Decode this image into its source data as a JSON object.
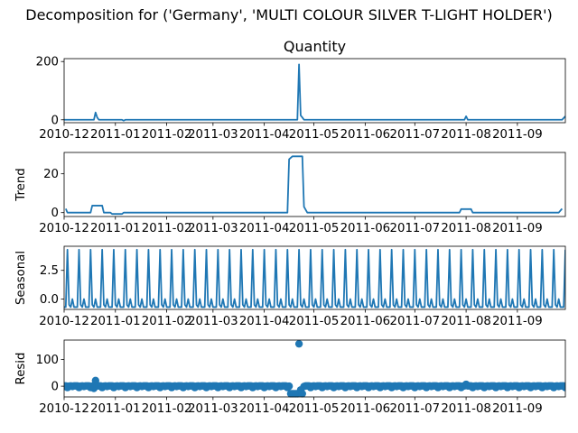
{
  "figure": {
    "suptitle": "Decomposition for ('Germany', 'MULTI COLOUR SILVER T-LIGHT HOLDER')"
  },
  "colors": {
    "series": "#1f77b4"
  },
  "chart_data": [
    {
      "type": "line",
      "title": "Quantity",
      "ylabel": "",
      "xlabel": "",
      "xlim": [
        "2010-12-01",
        "2011-09-30"
      ],
      "ylim": [
        -10,
        210
      ],
      "yticks": [
        0,
        200
      ],
      "xticklabels": [
        "2010-12",
        "2011-01",
        "2011-02",
        "2011-03",
        "2011-04",
        "2011-05",
        "2011-06",
        "2011-07",
        "2011-08",
        "2011-09"
      ],
      "points": [
        [
          "2010-12-01",
          0
        ],
        [
          "2010-12-19",
          0
        ],
        [
          "2010-12-20",
          25
        ],
        [
          "2010-12-21",
          8
        ],
        [
          "2010-12-22",
          0
        ],
        [
          "2011-01-05",
          0
        ],
        [
          "2011-01-06",
          -3
        ],
        [
          "2011-01-07",
          0
        ],
        [
          "2011-04-21",
          0
        ],
        [
          "2011-04-22",
          190
        ],
        [
          "2011-04-23",
          15
        ],
        [
          "2011-04-24",
          8
        ],
        [
          "2011-04-25",
          0
        ],
        [
          "2011-07-31",
          0
        ],
        [
          "2011-08-01",
          12
        ],
        [
          "2011-08-02",
          0
        ],
        [
          "2011-09-28",
          0
        ],
        [
          "2011-09-30",
          12
        ]
      ],
      "grid": false,
      "legend": "none"
    },
    {
      "type": "line",
      "title": "",
      "ylabel": "Trend",
      "xlabel": "",
      "xlim": [
        "2010-12-01",
        "2011-09-30"
      ],
      "ylim": [
        -2,
        31
      ],
      "yticks": [
        0,
        20
      ],
      "xticklabels": [
        "2010-12",
        "2011-01",
        "2011-02",
        "2011-03",
        "2011-04",
        "2011-05",
        "2011-06",
        "2011-07",
        "2011-08",
        "2011-09"
      ],
      "points": [
        [
          "2010-12-02",
          2
        ],
        [
          "2010-12-03",
          0
        ],
        [
          "2010-12-17",
          0
        ],
        [
          "2010-12-18",
          3.6
        ],
        [
          "2010-12-24",
          3.6
        ],
        [
          "2010-12-25",
          0
        ],
        [
          "2010-12-29",
          0
        ],
        [
          "2010-12-30",
          -0.7
        ],
        [
          "2011-01-05",
          -0.7
        ],
        [
          "2011-01-06",
          0
        ],
        [
          "2011-04-15",
          0
        ],
        [
          "2011-04-16",
          27.5
        ],
        [
          "2011-04-18",
          29
        ],
        [
          "2011-04-24",
          29
        ],
        [
          "2011-04-25",
          3
        ],
        [
          "2011-04-27",
          0
        ],
        [
          "2011-07-28",
          0
        ],
        [
          "2011-07-29",
          1.8
        ],
        [
          "2011-08-04",
          1.8
        ],
        [
          "2011-08-05",
          0
        ],
        [
          "2011-09-26",
          0
        ],
        [
          "2011-09-28",
          2
        ]
      ],
      "grid": false,
      "legend": "none"
    },
    {
      "type": "line",
      "title": "",
      "ylabel": "Seasonal",
      "xlabel": "",
      "xlim": [
        "2010-12-01",
        "2011-09-30"
      ],
      "ylim": [
        -0.9,
        4.6
      ],
      "yticks": [
        0.0,
        2.5
      ],
      "xticklabels": [
        "2010-12",
        "2011-01",
        "2011-02",
        "2011-03",
        "2011-04",
        "2011-05",
        "2011-06",
        "2011-07",
        "2011-08",
        "2011-09"
      ],
      "period_days": 7,
      "phase_start": "2010-12-01",
      "cycle_values": [
        -0.7,
        -0.7,
        4.3,
        -0.5,
        -0.7,
        0.0,
        -0.7
      ],
      "grid": false,
      "legend": "none"
    },
    {
      "type": "scatter",
      "title": "",
      "ylabel": "Resid",
      "xlabel": "",
      "xlim": [
        "2010-12-01",
        "2011-09-30"
      ],
      "ylim": [
        -40,
        172
      ],
      "yticks": [
        0,
        100
      ],
      "xticklabels": [
        "2010-12",
        "2011-01",
        "2011-02",
        "2011-03",
        "2011-04",
        "2011-05",
        "2011-06",
        "2011-07",
        "2011-08",
        "2011-09"
      ],
      "baseline": 0,
      "period_days": 7,
      "phase_start": "2010-12-01",
      "baseline_cycle": [
        1,
        1,
        -5,
        0,
        1,
        -1,
        1
      ],
      "outliers": [
        [
          "2010-12-20",
          21
        ],
        [
          "2010-12-19",
          -8
        ],
        [
          "2011-04-17",
          -28
        ],
        [
          "2011-04-18",
          -28
        ],
        [
          "2011-04-19",
          -28
        ],
        [
          "2011-04-20",
          -28
        ],
        [
          "2011-04-21",
          -28
        ],
        [
          "2011-04-22",
          158
        ],
        [
          "2011-04-23",
          -14
        ],
        [
          "2011-04-24",
          -28
        ],
        [
          "2011-08-01",
          7
        ]
      ],
      "grid": false,
      "legend": "none"
    }
  ]
}
